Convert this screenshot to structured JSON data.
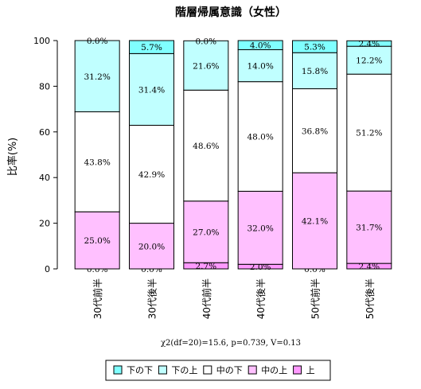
{
  "chart_data": {
    "type": "bar",
    "stacked": true,
    "title": "階層帰属意識（女性）",
    "ylabel": "比率(%)",
    "xlabel": "",
    "ylim": [
      0,
      100
    ],
    "yticks": [
      0,
      20,
      40,
      60,
      80,
      100
    ],
    "categories": [
      "30代前半",
      "30代後半",
      "40代前半",
      "40代後半",
      "50代前半",
      "50代後半"
    ],
    "note": "χ2(df=20)=15.6, p=0.739, V=0.13",
    "legend_position": "bottom",
    "series": [
      {
        "name": "上",
        "color": "#ff99ff",
        "values": [
          0.0,
          0.0,
          2.7,
          2.0,
          0.0,
          2.4
        ],
        "labels": [
          "0.0%",
          "0.0%",
          "2.7%",
          "2.0%",
          "0.0%",
          "2.4%"
        ]
      },
      {
        "name": "中の上",
        "color": "#ffc0ff",
        "values": [
          25.0,
          20.0,
          27.0,
          32.0,
          42.1,
          31.7
        ],
        "labels": [
          "25.0%",
          "20.0%",
          "27.0%",
          "32.0%",
          "42.1%",
          "31.7%"
        ]
      },
      {
        "name": "中の下",
        "color": "#ffffff",
        "values": [
          43.8,
          42.9,
          48.6,
          48.0,
          36.8,
          51.2
        ],
        "labels": [
          "43.8%",
          "42.9%",
          "48.6%",
          "48.0%",
          "36.8%",
          "51.2%"
        ]
      },
      {
        "name": "下の上",
        "color": "#c0ffff",
        "values": [
          31.2,
          31.4,
          21.6,
          14.0,
          15.8,
          12.2
        ],
        "labels": [
          "31.2%",
          "31.4%",
          "21.6%",
          "14.0%",
          "15.8%",
          "12.2%"
        ]
      },
      {
        "name": "下の下",
        "color": "#80ffff",
        "values": [
          0.0,
          5.7,
          0.0,
          4.0,
          5.3,
          2.4
        ],
        "labels": [
          "0.0%",
          "5.7%",
          "0.0%",
          "4.0%",
          "5.3%",
          "2.4%"
        ]
      }
    ],
    "legend_order": [
      "下の下",
      "下の上",
      "中の下",
      "中の上",
      "上"
    ]
  }
}
